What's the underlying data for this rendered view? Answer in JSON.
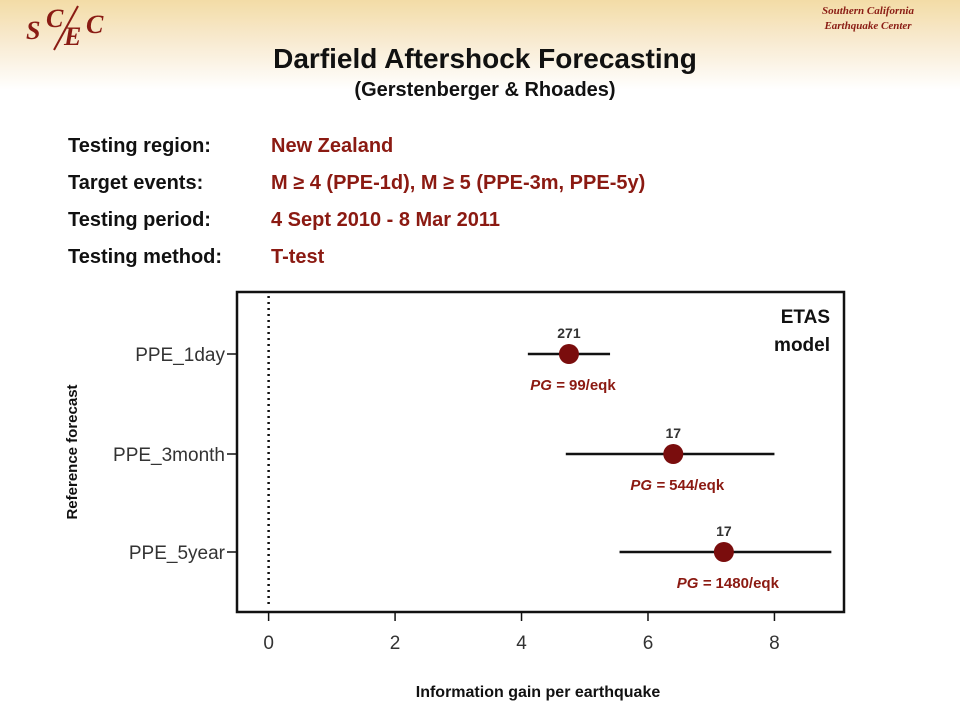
{
  "header": {
    "logo_letters": [
      "S",
      "C",
      "E",
      "C"
    ],
    "org_line1": "Southern California",
    "org_line2": "Earthquake Center"
  },
  "title": "Darfield Aftershock Forecasting",
  "subtitle": "(Gerstenberger & Rhoades)",
  "info": [
    {
      "label": "Testing region:",
      "value": "New Zealand"
    },
    {
      "label": "Target events:",
      "value": "M ≥ 4 (PPE-1d),  M ≥ 5 (PPE-3m, PPE-5y)"
    },
    {
      "label": "Testing period:",
      "value": "4 Sept 2010 - 8 Mar 2011"
    },
    {
      "label": "Testing method:",
      "value": "T-test"
    }
  ],
  "chart_data": {
    "type": "scatter",
    "subtype": "point-with-interval",
    "xlabel": "Information gain per earthquake",
    "ylabel": "Reference forecast",
    "xlim": [
      -0.5,
      9.1
    ],
    "xticks": [
      0,
      2,
      4,
      6,
      8
    ],
    "categories": [
      "PPE_1day",
      "PPE_3month",
      "PPE_5year"
    ],
    "series": [
      {
        "points": [
          {
            "category": "PPE_1day",
            "x": 4.75,
            "low": 4.1,
            "high": 5.4,
            "count_label": "271",
            "pg_prefix": "PG =",
            "pg_value": "99/eqk"
          },
          {
            "category": "PPE_3month",
            "x": 6.4,
            "low": 4.7,
            "high": 8.0,
            "count_label": "17",
            "pg_prefix": "PG =",
            "pg_value": "544/eqk"
          },
          {
            "category": "PPE_5year",
            "x": 7.2,
            "low": 5.55,
            "high": 8.9,
            "count_label": "17",
            "pg_prefix": "PG =",
            "pg_value": "1480/eqk"
          }
        ]
      }
    ],
    "reference_line_x": 0,
    "annotation": [
      "ETAS",
      "model"
    ],
    "colors": {
      "point": "#7a0d0d",
      "pg_text": "#8b1a12",
      "line": "#111111"
    }
  }
}
